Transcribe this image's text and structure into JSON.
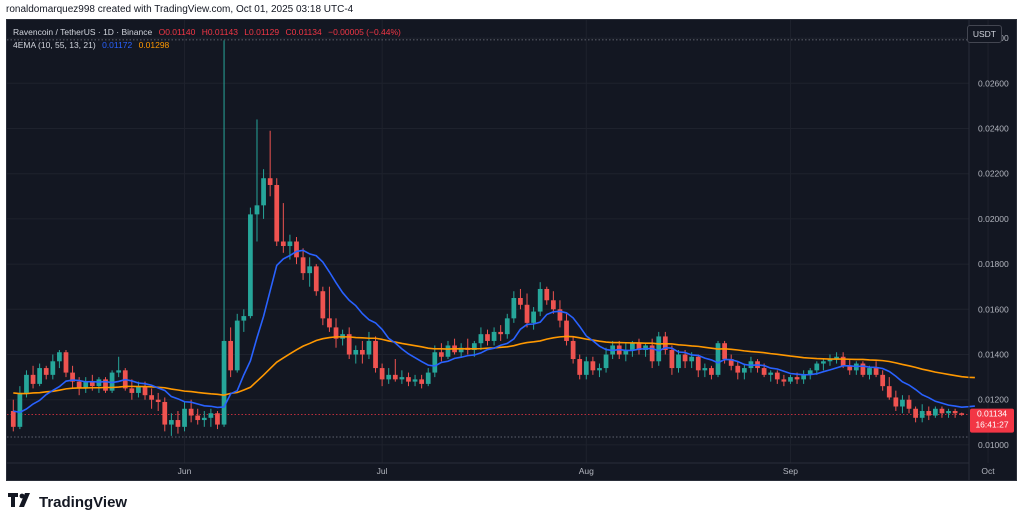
{
  "header": {
    "text": "ronaldomarquez998 created with TradingView.com, Oct 01, 2025 03:18 UTC-4"
  },
  "legend": {
    "symbol": "Ravencoin / TetherUS · 1D · Binance",
    "open": "O0.01140",
    "high": "H0.01143",
    "low": "L0.01129",
    "close": "C0.01134",
    "change": "−0.00005 (−0.44%)",
    "ema_label": "4EMA (10, 55, 13, 21)",
    "ema_fast": "0.01172",
    "ema_slow": "0.01298"
  },
  "currency_badge": "USDT",
  "price_tag": {
    "value": "0.01134",
    "countdown": "16:41:27"
  },
  "footer": {
    "brand": "TradingView"
  },
  "colors": {
    "up": "#26a69a",
    "down": "#ef5350",
    "ema_fast": "#2962ff",
    "ema_slow": "#ff9800",
    "background": "#131722"
  },
  "chart_data": {
    "type": "candlestick",
    "y_ticks": [
      "0.02800",
      "0.02600",
      "0.02400",
      "0.02200",
      "0.02000",
      "0.01800",
      "0.01600",
      "0.01400",
      "0.01200",
      "0.01000"
    ],
    "ylim": [
      0.0092,
      0.0288
    ],
    "x_ticks": [
      {
        "label": "Jun",
        "at": 26
      },
      {
        "label": "Jul",
        "at": 56
      },
      {
        "label": "Aug",
        "at": 87
      },
      {
        "label": "Sep",
        "at": 118
      },
      {
        "label": "Oct",
        "at": 148
      }
    ],
    "dotted_levels": [
      0.02792,
      0.01035
    ],
    "last_price": 0.01134,
    "ohlc": [
      [
        0.0115,
        0.012,
        0.0106,
        0.0108
      ],
      [
        0.0108,
        0.0126,
        0.0107,
        0.0123
      ],
      [
        0.0123,
        0.0133,
        0.0121,
        0.0131
      ],
      [
        0.0131,
        0.0135,
        0.0125,
        0.0127
      ],
      [
        0.0127,
        0.0136,
        0.0126,
        0.0134
      ],
      [
        0.0134,
        0.0135,
        0.0129,
        0.0131
      ],
      [
        0.0131,
        0.014,
        0.0129,
        0.0137
      ],
      [
        0.0137,
        0.0142,
        0.0134,
        0.0141
      ],
      [
        0.0141,
        0.0142,
        0.013,
        0.0132
      ],
      [
        0.0132,
        0.0135,
        0.0125,
        0.0128
      ],
      [
        0.0128,
        0.013,
        0.0122,
        0.0125
      ],
      [
        0.0125,
        0.013,
        0.0123,
        0.0128
      ],
      [
        0.0128,
        0.0131,
        0.0124,
        0.0126
      ],
      [
        0.0126,
        0.013,
        0.0123,
        0.0129
      ],
      [
        0.0129,
        0.013,
        0.0123,
        0.0124
      ],
      [
        0.0124,
        0.0133,
        0.0123,
        0.0132
      ],
      [
        0.0132,
        0.0139,
        0.013,
        0.0133
      ],
      [
        0.0133,
        0.0134,
        0.0124,
        0.0125
      ],
      [
        0.0125,
        0.0129,
        0.012,
        0.0123
      ],
      [
        0.0123,
        0.0128,
        0.0121,
        0.0126
      ],
      [
        0.0126,
        0.0128,
        0.012,
        0.0122
      ],
      [
        0.0122,
        0.0125,
        0.0116,
        0.012
      ],
      [
        0.012,
        0.0123,
        0.0115,
        0.0119
      ],
      [
        0.0119,
        0.0121,
        0.0106,
        0.0109
      ],
      [
        0.0109,
        0.0114,
        0.0104,
        0.0111
      ],
      [
        0.0111,
        0.0115,
        0.0105,
        0.0108
      ],
      [
        0.0108,
        0.0119,
        0.0106,
        0.0116
      ],
      [
        0.0116,
        0.012,
        0.011,
        0.0113
      ],
      [
        0.0113,
        0.0116,
        0.0109,
        0.0111
      ],
      [
        0.0111,
        0.0115,
        0.0108,
        0.0112
      ],
      [
        0.0112,
        0.0116,
        0.0108,
        0.0114
      ],
      [
        0.0114,
        0.0115,
        0.0107,
        0.0109
      ],
      [
        0.0109,
        0.0279,
        0.0108,
        0.0146
      ],
      [
        0.0146,
        0.0152,
        0.013,
        0.0133
      ],
      [
        0.0133,
        0.0158,
        0.0132,
        0.0155
      ],
      [
        0.0155,
        0.016,
        0.015,
        0.0157
      ],
      [
        0.0157,
        0.0205,
        0.0156,
        0.0202
      ],
      [
        0.0202,
        0.0244,
        0.019,
        0.0206
      ],
      [
        0.0206,
        0.0222,
        0.02,
        0.0218
      ],
      [
        0.0218,
        0.0239,
        0.021,
        0.0215
      ],
      [
        0.0215,
        0.0218,
        0.0188,
        0.019
      ],
      [
        0.019,
        0.0207,
        0.0185,
        0.0188
      ],
      [
        0.0188,
        0.0193,
        0.0182,
        0.019
      ],
      [
        0.019,
        0.0192,
        0.018,
        0.0183
      ],
      [
        0.0183,
        0.0187,
        0.0173,
        0.0176
      ],
      [
        0.0176,
        0.0183,
        0.017,
        0.0179
      ],
      [
        0.0179,
        0.018,
        0.0166,
        0.0168
      ],
      [
        0.0168,
        0.017,
        0.0153,
        0.0156
      ],
      [
        0.0156,
        0.017,
        0.015,
        0.0152
      ],
      [
        0.0152,
        0.0156,
        0.0143,
        0.0147
      ],
      [
        0.0147,
        0.0151,
        0.0144,
        0.0149
      ],
      [
        0.0149,
        0.0152,
        0.0138,
        0.014
      ],
      [
        0.014,
        0.0144,
        0.0136,
        0.0142
      ],
      [
        0.0142,
        0.0146,
        0.0136,
        0.014
      ],
      [
        0.014,
        0.015,
        0.0138,
        0.0146
      ],
      [
        0.0146,
        0.0148,
        0.0132,
        0.0134
      ],
      [
        0.0134,
        0.0136,
        0.0126,
        0.0129
      ],
      [
        0.0129,
        0.0134,
        0.0127,
        0.0131
      ],
      [
        0.0131,
        0.0138,
        0.0128,
        0.0129
      ],
      [
        0.0129,
        0.0133,
        0.0127,
        0.013
      ],
      [
        0.013,
        0.0132,
        0.0126,
        0.0128
      ],
      [
        0.0128,
        0.0131,
        0.0126,
        0.0129
      ],
      [
        0.0129,
        0.0131,
        0.0125,
        0.0127
      ],
      [
        0.0127,
        0.0134,
        0.0126,
        0.0132
      ],
      [
        0.0132,
        0.0144,
        0.013,
        0.0141
      ],
      [
        0.0141,
        0.0145,
        0.0137,
        0.0139
      ],
      [
        0.0139,
        0.0146,
        0.0138,
        0.0144
      ],
      [
        0.0144,
        0.0147,
        0.014,
        0.0141
      ],
      [
        0.0141,
        0.0145,
        0.0139,
        0.0143
      ],
      [
        0.0143,
        0.0147,
        0.014,
        0.0142
      ],
      [
        0.0142,
        0.0146,
        0.0139,
        0.0145
      ],
      [
        0.0145,
        0.0152,
        0.0142,
        0.0149
      ],
      [
        0.0149,
        0.0151,
        0.0144,
        0.0146
      ],
      [
        0.0146,
        0.0152,
        0.0144,
        0.015
      ],
      [
        0.015,
        0.0153,
        0.0146,
        0.0149
      ],
      [
        0.0149,
        0.0158,
        0.0147,
        0.0156
      ],
      [
        0.0156,
        0.0168,
        0.0154,
        0.0165
      ],
      [
        0.0165,
        0.0169,
        0.016,
        0.0162
      ],
      [
        0.0162,
        0.0167,
        0.0152,
        0.0154
      ],
      [
        0.0154,
        0.0161,
        0.0151,
        0.0159
      ],
      [
        0.0159,
        0.0172,
        0.0157,
        0.0169
      ],
      [
        0.0169,
        0.017,
        0.0162,
        0.0164
      ],
      [
        0.0164,
        0.0168,
        0.0158,
        0.016
      ],
      [
        0.016,
        0.0164,
        0.0152,
        0.0155
      ],
      [
        0.0155,
        0.0158,
        0.0144,
        0.0146
      ],
      [
        0.0146,
        0.0148,
        0.0136,
        0.0138
      ],
      [
        0.0138,
        0.014,
        0.0129,
        0.0131
      ],
      [
        0.0131,
        0.0139,
        0.0129,
        0.0137
      ],
      [
        0.0137,
        0.0139,
        0.0131,
        0.0133
      ],
      [
        0.0133,
        0.0136,
        0.013,
        0.0134
      ],
      [
        0.0134,
        0.0143,
        0.0132,
        0.014
      ],
      [
        0.014,
        0.0146,
        0.0138,
        0.0144
      ],
      [
        0.0144,
        0.0146,
        0.0138,
        0.014
      ],
      [
        0.014,
        0.0145,
        0.0137,
        0.0142
      ],
      [
        0.0142,
        0.0146,
        0.0139,
        0.0145
      ],
      [
        0.0145,
        0.0147,
        0.014,
        0.0142
      ],
      [
        0.0142,
        0.0145,
        0.0139,
        0.0144
      ],
      [
        0.0144,
        0.0147,
        0.0134,
        0.0137
      ],
      [
        0.0137,
        0.015,
        0.0135,
        0.0148
      ],
      [
        0.0148,
        0.015,
        0.014,
        0.0142
      ],
      [
        0.0142,
        0.0144,
        0.0131,
        0.0134
      ],
      [
        0.0134,
        0.0142,
        0.0132,
        0.014
      ],
      [
        0.014,
        0.0142,
        0.0134,
        0.0137
      ],
      [
        0.0137,
        0.0141,
        0.0134,
        0.0139
      ],
      [
        0.0139,
        0.014,
        0.013,
        0.0133
      ],
      [
        0.0133,
        0.0136,
        0.013,
        0.0134
      ],
      [
        0.0134,
        0.0135,
        0.0129,
        0.0131
      ],
      [
        0.0131,
        0.0146,
        0.013,
        0.0145
      ],
      [
        0.0145,
        0.0146,
        0.0136,
        0.0138
      ],
      [
        0.0138,
        0.014,
        0.0133,
        0.0135
      ],
      [
        0.0135,
        0.0137,
        0.0129,
        0.0132
      ],
      [
        0.0132,
        0.0136,
        0.0129,
        0.0134
      ],
      [
        0.0134,
        0.0139,
        0.0132,
        0.0137
      ],
      [
        0.0137,
        0.0138,
        0.0132,
        0.0134
      ],
      [
        0.0134,
        0.0136,
        0.013,
        0.0131
      ],
      [
        0.0131,
        0.0133,
        0.0128,
        0.0132
      ],
      [
        0.0132,
        0.0133,
        0.0127,
        0.0129
      ],
      [
        0.0129,
        0.0131,
        0.0126,
        0.0128
      ],
      [
        0.0128,
        0.0131,
        0.0127,
        0.013
      ],
      [
        0.013,
        0.0132,
        0.0127,
        0.0129
      ],
      [
        0.0129,
        0.0133,
        0.0127,
        0.0131
      ],
      [
        0.0131,
        0.0134,
        0.0129,
        0.0133
      ],
      [
        0.0133,
        0.0137,
        0.0131,
        0.0136
      ],
      [
        0.0136,
        0.0138,
        0.0133,
        0.0137
      ],
      [
        0.0137,
        0.014,
        0.0135,
        0.0138
      ],
      [
        0.0138,
        0.0141,
        0.0136,
        0.0139
      ],
      [
        0.0139,
        0.0141,
        0.0134,
        0.0135
      ],
      [
        0.0135,
        0.0138,
        0.0131,
        0.0133
      ],
      [
        0.0133,
        0.0137,
        0.0131,
        0.0136
      ],
      [
        0.0136,
        0.0137,
        0.013,
        0.0131
      ],
      [
        0.0131,
        0.0135,
        0.0129,
        0.0134
      ],
      [
        0.0134,
        0.0137,
        0.013,
        0.0131
      ],
      [
        0.0131,
        0.0133,
        0.0124,
        0.0126
      ],
      [
        0.0126,
        0.013,
        0.012,
        0.0121
      ],
      [
        0.0121,
        0.0124,
        0.0115,
        0.0117
      ],
      [
        0.0117,
        0.0122,
        0.0114,
        0.012
      ],
      [
        0.012,
        0.0122,
        0.0114,
        0.0116
      ],
      [
        0.0116,
        0.0117,
        0.011,
        0.0112
      ],
      [
        0.0112,
        0.0118,
        0.011,
        0.0115
      ],
      [
        0.0115,
        0.0117,
        0.0111,
        0.0113
      ],
      [
        0.0113,
        0.0117,
        0.0112,
        0.0116
      ],
      [
        0.0116,
        0.0117,
        0.0112,
        0.0114
      ],
      [
        0.0114,
        0.0116,
        0.0112,
        0.0115
      ],
      [
        0.0115,
        0.0116,
        0.0112,
        0.0114
      ],
      [
        0.0114,
        0.01143,
        0.01129,
        0.01134
      ]
    ],
    "ema_fast": [
      0.0115,
      0.01144,
      0.01159,
      0.01181,
      0.01197,
      0.01223,
      0.01241,
      0.01258,
      0.01282,
      0.01287,
      0.01285,
      0.01279,
      0.0128,
      0.01278,
      0.0128,
      0.01276,
      0.01281,
      0.01289,
      0.01283,
      0.01274,
      0.01271,
      0.01264,
      0.01252,
      0.01241,
      0.01214,
      0.01204,
      0.01191,
      0.01189,
      0.01181,
      0.01173,
      0.01171,
      0.01166,
      0.01168,
      0.01226,
      0.0124,
      0.0131,
      0.01372,
      0.01474,
      0.01569,
      0.01682,
      0.01794,
      0.01823,
      0.01838,
      0.01856,
      0.01861,
      0.01845,
      0.01837,
      0.01809,
      0.01765,
      0.01718,
      0.01674,
      0.0164,
      0.01616,
      0.01581,
      0.01554,
      0.0154,
      0.01511,
      0.01471,
      0.01451,
      0.01425,
      0.01403,
      0.01386,
      0.01369,
      0.01353,
      0.01349,
      0.01365,
      0.0137,
      0.01383,
      0.01388,
      0.01395,
      0.01398,
      0.01407,
      0.01422,
      0.01428,
      0.01441,
      0.01449,
      0.01469,
      0.01512,
      0.01533,
      0.01535,
      0.01543,
      0.01577,
      0.01589,
      0.01591,
      0.01584,
      0.01562,
      0.01524,
      0.01482,
      0.01461,
      0.01437,
      0.01422,
      0.01418,
      0.01422,
      0.01418,
      0.01418,
      0.01424,
      0.01425,
      0.01427,
      0.01416,
      0.0143,
      0.01428,
      0.01411,
      0.01409,
      0.01398,
      0.01396,
      0.01384,
      0.01376,
      0.01363,
      0.01378,
      0.01377,
      0.01369,
      0.01356,
      0.01352,
      0.01354,
      0.01351,
      0.0134,
      0.01336,
      0.01326,
      0.01316,
      0.01313,
      0.0131,
      0.01311,
      0.01315,
      0.01324,
      0.01332,
      0.01341,
      0.0135,
      0.0135,
      0.01347,
      0.01349,
      0.01344,
      0.01343,
      0.01338,
      0.01325,
      0.01304,
      0.01279,
      0.01265,
      0.01245,
      0.01222,
      0.01209,
      0.01193,
      0.01185,
      0.01176,
      0.01172,
      0.01167,
      0.01169,
      0.01172
    ],
    "ema_slow": [
      0.0123,
      0.01227,
      0.01227,
      0.0123,
      0.01231,
      0.01235,
      0.01237,
      0.01242,
      0.01248,
      0.01251,
      0.01252,
      0.01252,
      0.01253,
      0.01253,
      0.01254,
      0.01254,
      0.01256,
      0.01259,
      0.01259,
      0.01258,
      0.01258,
      0.01257,
      0.01255,
      0.01253,
      0.01247,
      0.01243,
      0.01238,
      0.01236,
      0.01232,
      0.01229,
      0.01226,
      0.01224,
      0.0122,
      0.01228,
      0.01232,
      0.01243,
      0.01255,
      0.01282,
      0.01309,
      0.01338,
      0.01366,
      0.01385,
      0.01403,
      0.01421,
      0.01437,
      0.01449,
      0.01462,
      0.0147,
      0.01475,
      0.01478,
      0.01478,
      0.01478,
      0.01475,
      0.01474,
      0.01472,
      0.01472,
      0.01467,
      0.0146,
      0.01455,
      0.01449,
      0.01444,
      0.01439,
      0.01434,
      0.01428,
      0.01425,
      0.01425,
      0.01424,
      0.01425,
      0.01425,
      0.01425,
      0.01425,
      0.01426,
      0.01428,
      0.01429,
      0.01432,
      0.01434,
      0.01439,
      0.01447,
      0.01453,
      0.01456,
      0.0146,
      0.01468,
      0.01474,
      0.01478,
      0.0148,
      0.01479,
      0.01474,
      0.01468,
      0.01464,
      0.01459,
      0.01455,
      0.01453,
      0.01453,
      0.01452,
      0.01451,
      0.01451,
      0.0145,
      0.0145,
      0.01447,
      0.01448,
      0.01447,
      0.01443,
      0.01441,
      0.01438,
      0.01436,
      0.01432,
      0.01428,
      0.01424,
      0.01425,
      0.01423,
      0.0142,
      0.01416,
      0.01413,
      0.01411,
      0.01408,
      0.01404,
      0.01401,
      0.01397,
      0.01393,
      0.0139,
      0.01386,
      0.01384,
      0.01382,
      0.01381,
      0.0138,
      0.0138,
      0.0138,
      0.01379,
      0.01378,
      0.01378,
      0.01376,
      0.01375,
      0.01373,
      0.01369,
      0.01363,
      0.01356,
      0.0135,
      0.01343,
      0.01335,
      0.01329,
      0.01322,
      0.01317,
      0.01312,
      0.01307,
      0.01302,
      0.01299,
      0.01298
    ]
  }
}
